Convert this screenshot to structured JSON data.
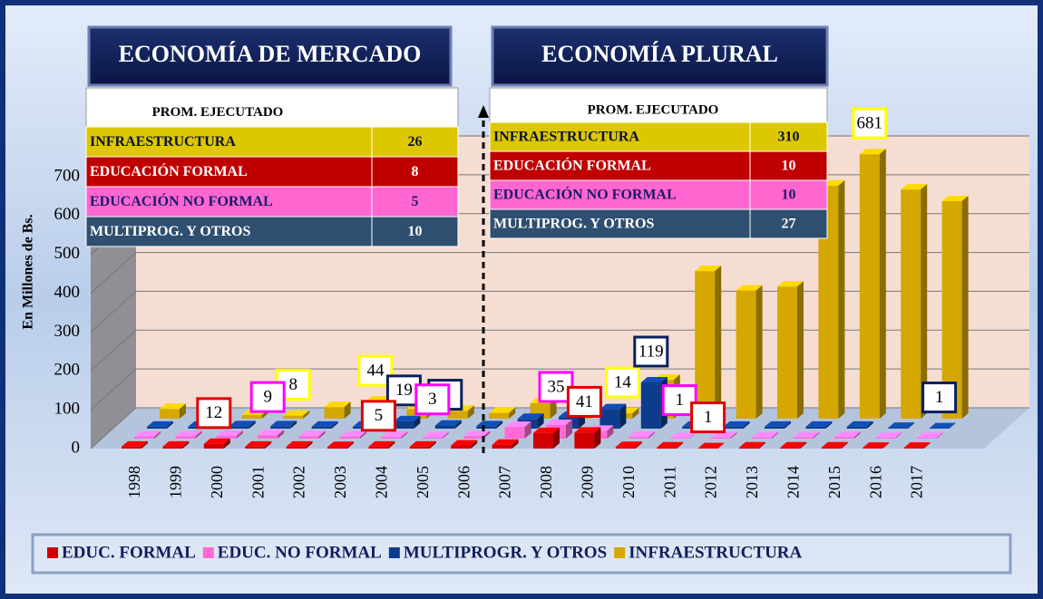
{
  "chart_data": {
    "type": "bar3d",
    "y_label": "En Millones de Bs.",
    "categories": [
      "1998",
      "1999",
      "2000",
      "2001",
      "2002",
      "2003",
      "2004",
      "2005",
      "2006",
      "2007",
      "2008",
      "2009",
      "2010",
      "2011",
      "2012",
      "2013",
      "2014",
      "2015",
      "2016",
      "2017"
    ],
    "series": [
      {
        "name": "EDUC. FORMAL",
        "color": "#d00000",
        "values": [
          5,
          5,
          12,
          5,
          5,
          4,
          5,
          5,
          8,
          10,
          40,
          41,
          4,
          3,
          1,
          3,
          3,
          3,
          2,
          2
        ],
        "labeled": [
          2,
          6,
          11,
          14
        ]
      },
      {
        "name": "EDUC. NO FORMAL",
        "color": "#ff6ad5",
        "values": [
          5,
          6,
          7,
          9,
          6,
          5,
          4,
          3,
          6,
          30,
          35,
          20,
          4,
          1,
          3,
          3,
          3,
          4,
          2,
          2
        ],
        "labeled": [
          3,
          7,
          10,
          13
        ]
      },
      {
        "name": "MULTIPROGR. Y OTROS",
        "color": "#0d3c8c",
        "values": [
          5,
          5,
          6,
          6,
          5,
          5,
          19,
          8,
          6,
          25,
          30,
          50,
          119,
          5,
          5,
          5,
          5,
          5,
          2,
          1
        ],
        "labeled": [
          6,
          7,
          12,
          19
        ]
      },
      {
        "name": "INFRAESTRUCTURA",
        "color": "#d4a800",
        "values": [
          25,
          10,
          10,
          8,
          30,
          44,
          25,
          20,
          15,
          40,
          20,
          14,
          100,
          380,
          330,
          340,
          600,
          681,
          590,
          560
        ],
        "labeled": [
          3,
          5,
          11,
          17
        ]
      }
    ],
    "ylim": [
      0,
      700
    ],
    "yticks": [
      0,
      100,
      200,
      300,
      400,
      500,
      600,
      700
    ],
    "legend": "bottom"
  },
  "panels": [
    {
      "title": "ECONOMÍA DE MERCADO",
      "header": "PROM. EJECUTADO",
      "rows": [
        [
          "INFRAESTRUCTURA",
          26
        ],
        [
          "EDUCACIÓN FORMAL",
          8
        ],
        [
          "EDUCACIÓN NO FORMAL",
          5
        ],
        [
          "MULTIPROG. Y OTROS",
          10
        ]
      ]
    },
    {
      "title": "ECONOMÍA PLURAL",
      "header": "PROM. EJECUTADO",
      "rows": [
        [
          "INFRAESTRUCTURA",
          310
        ],
        [
          "EDUCACIÓN FORMAL",
          10
        ],
        [
          "EDUCACIÓN NO FORMAL",
          10
        ],
        [
          "MULTIPROG. Y OTROS",
          27
        ]
      ]
    }
  ]
}
